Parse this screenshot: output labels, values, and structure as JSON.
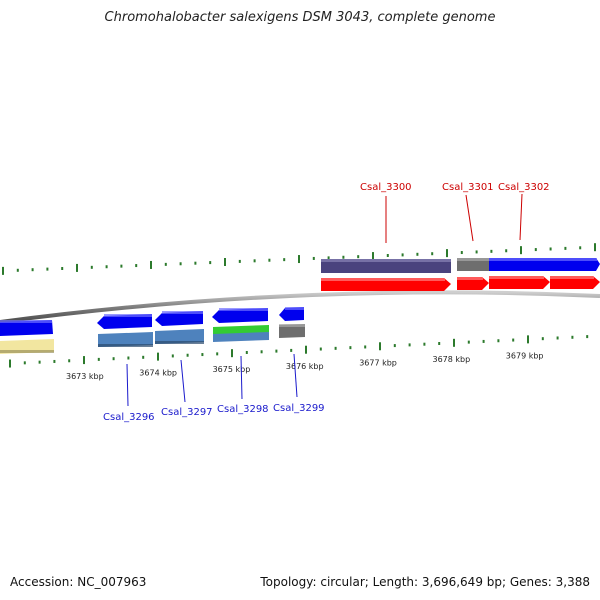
{
  "title": "Chromohalobacter salexigens DSM 3043, complete genome",
  "footer": {
    "accession": "Accession: NC_007963",
    "stats": "Topology: circular; Length: 3,696,649 bp; Genes: 3,388"
  },
  "colors": {
    "forward_gene": "#0000ee",
    "forward_cds": "#ff0000",
    "reverse_cds_blue": "#4e82bd",
    "other_feature": "#6e6e6e",
    "purple_feature": "#4a437e",
    "green_feature": "#33cc33",
    "yellow_feature": "#f2e6a0",
    "tick_green": "#2c7a2c",
    "backbone": "#888888"
  },
  "ticks": [
    {
      "label": "3673 kbp"
    },
    {
      "label": "3674 kbp"
    },
    {
      "label": "3675 kbp"
    },
    {
      "label": "3676 kbp"
    },
    {
      "label": "3677 kbp"
    },
    {
      "label": "3678 kbp"
    },
    {
      "label": "3679 kbp"
    }
  ],
  "labels_top": [
    {
      "text": "Csal_3300"
    },
    {
      "text": "Csal_3301"
    },
    {
      "text": "Csal_3302"
    }
  ],
  "labels_bottom": [
    {
      "text": "Csal_3296"
    },
    {
      "text": "Csal_3297"
    },
    {
      "text": "Csal_3298"
    },
    {
      "text": "Csal_3299"
    }
  ]
}
